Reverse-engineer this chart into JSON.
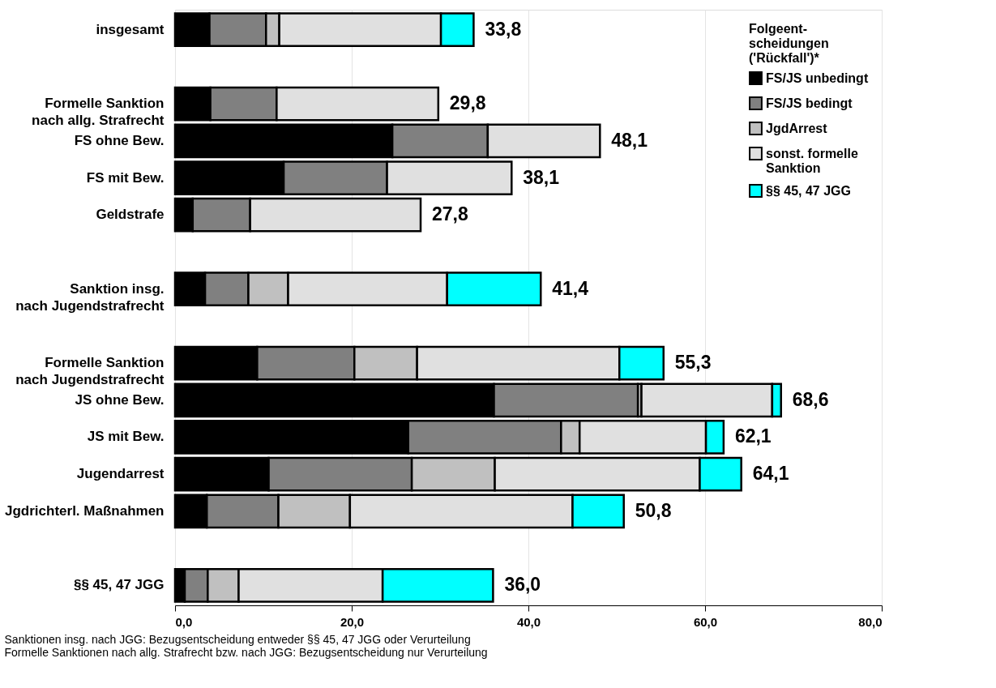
{
  "chart_data": {
    "type": "bar",
    "orientation": "horizontal",
    "stacked": true,
    "categories": [
      "insgesamt",
      null,
      "Formelle Sanktion\nnach allg. Strafrecht",
      "FS ohne Bew.",
      "FS mit Bew.",
      "Geldstrafe",
      null,
      "Sanktion insg.\nnach Jugendstrafrecht",
      null,
      "Formelle Sanktion\nnach Jugendstrafrecht",
      "JS ohne Bew.",
      "JS mit Bew.",
      "Jugendarrest",
      "Jgdrichterl. Maßnahmen",
      null,
      "§§ 45, 47 JGG"
    ],
    "series": [
      {
        "name": "FS/JS unbedingt",
        "color": "#000000",
        "values": [
          3.9,
          null,
          4.0,
          24.6,
          12.3,
          2.0,
          null,
          3.4,
          null,
          9.3,
          36.1,
          26.4,
          10.6,
          3.6,
          null,
          1.1
        ]
      },
      {
        "name": "FS/JS bedingt",
        "color": "#808080",
        "values": [
          6.4,
          null,
          7.5,
          10.8,
          11.7,
          6.5,
          null,
          4.9,
          null,
          11.0,
          16.3,
          17.3,
          16.2,
          8.1,
          null,
          2.6
        ]
      },
      {
        "name": "JgdArrest",
        "color": "#c0c0c0",
        "values": [
          1.5,
          null,
          null,
          null,
          null,
          null,
          null,
          4.5,
          null,
          7.1,
          0.4,
          2.1,
          9.4,
          8.1,
          null,
          3.5
        ]
      },
      {
        "name": "sonst. formelle\nSanktion",
        "color": "#e0e0e0",
        "values": [
          18.3,
          null,
          18.3,
          12.7,
          14.1,
          19.3,
          null,
          18.0,
          null,
          22.9,
          14.8,
          14.3,
          23.2,
          25.2,
          null,
          16.3
        ]
      },
      {
        "name": "§§ 45, 47 JGG",
        "color": "#00ffff",
        "values": [
          3.7,
          null,
          null,
          null,
          null,
          null,
          null,
          10.6,
          null,
          5.0,
          1.0,
          2.0,
          4.7,
          5.8,
          null,
          12.5
        ]
      }
    ],
    "totals": [
      "33,8",
      null,
      "29,8",
      "48,1",
      "38,1",
      "27,8",
      null,
      "41,4",
      null,
      "55,3",
      "68,6",
      "62,1",
      "64,1",
      "50,8",
      null,
      "36,0"
    ],
    "legend_title": "Folgeent-\nscheidungen\n('Rückfall')*",
    "legend": "top right",
    "xlim": [
      0,
      80
    ],
    "xticks": [
      {
        "value": 0,
        "label": "0,0"
      },
      {
        "value": 20,
        "label": "20,0"
      },
      {
        "value": 40,
        "label": "40,0"
      },
      {
        "value": 60,
        "label": "60,0"
      },
      {
        "value": 80,
        "label": "80,0"
      }
    ],
    "grid": "x",
    "annotations": [
      "Sanktionen insg. nach JGG: Bezugsentscheidung entweder §§ 45, 47 JGG oder Verurteilung",
      "Formelle Sanktionen nach allg. Strafrecht bzw. nach JGG: Bezugsentscheidung nur Verurteilung"
    ]
  }
}
